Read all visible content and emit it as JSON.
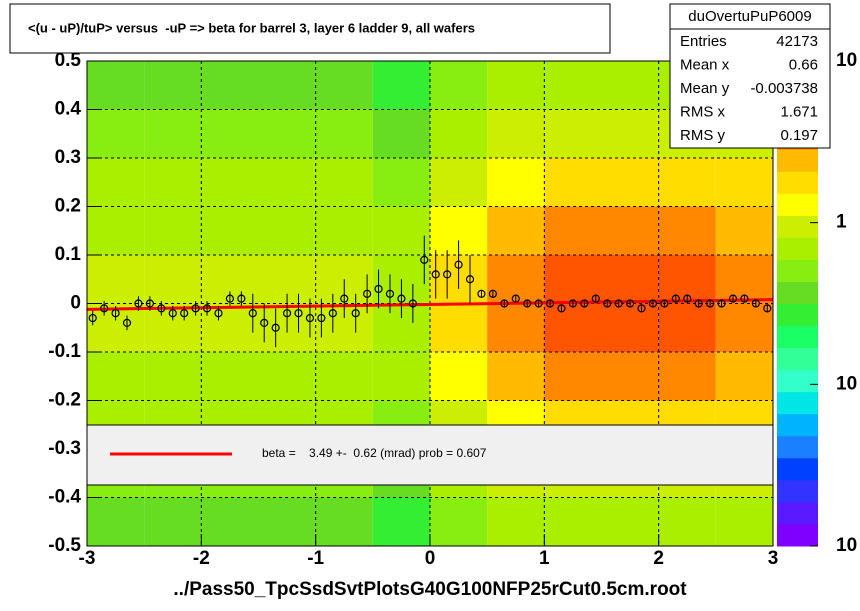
{
  "chart_data": {
    "type": "profile2d",
    "title": "<(u - uP)/tuP> versus  -uP => beta for barrel 3, layer 6 ladder 9, all wafers",
    "x_label": "../Pass50_TpcSsdSvtPlotsG40G100NFP25rCut0.5cm.root",
    "xlim": [
      -3,
      3
    ],
    "ylim": [
      -0.5,
      0.5
    ],
    "xticks": [
      -3,
      -2,
      -1,
      0,
      1,
      2,
      3
    ],
    "yticks": [
      -0.5,
      -0.4,
      -0.3,
      -0.2,
      -0.1,
      0,
      0.1,
      0.2,
      0.3,
      0.4,
      0.5
    ],
    "grid": true,
    "zlim": [
      0.01,
      10
    ],
    "zlog": true,
    "zticks": [
      {
        "value": 0.01,
        "label": "10"
      },
      {
        "value": 0.1,
        "label": "10"
      },
      1,
      {
        "value": 10,
        "label": "10"
      }
    ],
    "palette": [
      "#7f00ff",
      "#5a1aff",
      "#3333ff",
      "#0040ff",
      "#1a80ff",
      "#00b3ff",
      "#00e6e6",
      "#33ffcc",
      "#33ff99",
      "#1aff66",
      "#33ee33",
      "#66dd22",
      "#88ee11",
      "#aaee00",
      "#ccee00",
      "#ffff00",
      "#ffdd00",
      "#ffbb00",
      "#ff8800",
      "#ff5500",
      "#ff2200",
      "#ee0000"
    ],
    "xbins": [
      -3,
      -2.5,
      -2,
      -1.5,
      -1,
      -0.5,
      0,
      0.5,
      1,
      1.5,
      2,
      2.5,
      3
    ],
    "ybins": [
      -0.5,
      -0.4,
      -0.3,
      -0.2,
      -0.1,
      0,
      0.1,
      0.2,
      0.3,
      0.4,
      0.5
    ],
    "z": [
      [
        0.4,
        0.4,
        0.4,
        0.4,
        0.4,
        0.3,
        0.5,
        0.8,
        0.8,
        0.8,
        0.8,
        0.8
      ],
      [
        0.5,
        0.5,
        0.5,
        0.5,
        0.5,
        0.4,
        0.6,
        0.9,
        1,
        1,
        1,
        0.9
      ],
      [
        0.6,
        0.6,
        0.6,
        0.6,
        0.6,
        0.5,
        0.9,
        1.5,
        2,
        2,
        2,
        1.8
      ],
      [
        0.7,
        0.7,
        0.7,
        0.7,
        0.7,
        0.6,
        1.2,
        2.5,
        3,
        3,
        3,
        2.5
      ],
      [
        0.9,
        0.9,
        0.9,
        0.9,
        0.9,
        0.7,
        1.8,
        3.5,
        4,
        4,
        4,
        3.5
      ],
      [
        0.9,
        0.9,
        0.9,
        0.9,
        0.9,
        0.7,
        1.8,
        3.5,
        4,
        4,
        4,
        3.5
      ],
      [
        0.7,
        0.7,
        0.7,
        0.7,
        0.7,
        0.6,
        1.2,
        2.5,
        3,
        3,
        3,
        2.5
      ],
      [
        0.6,
        0.6,
        0.6,
        0.6,
        0.6,
        0.5,
        0.9,
        1.5,
        2,
        2,
        2,
        1.8
      ],
      [
        0.5,
        0.5,
        0.5,
        0.5,
        0.5,
        0.4,
        0.6,
        0.9,
        1,
        1,
        1,
        0.9
      ],
      [
        0.4,
        0.4,
        0.4,
        0.4,
        0.4,
        0.3,
        0.5,
        0.8,
        0.8,
        0.8,
        0.8,
        0.8
      ]
    ],
    "profile": {
      "color": "#000000",
      "x": [
        -2.95,
        -2.85,
        -2.75,
        -2.65,
        -2.55,
        -2.45,
        -2.35,
        -2.25,
        -2.15,
        -2.05,
        -1.95,
        -1.85,
        -1.75,
        -1.65,
        -1.55,
        -1.45,
        -1.35,
        -1.25,
        -1.15,
        -1.05,
        -0.95,
        -0.85,
        -0.75,
        -0.65,
        -0.55,
        -0.45,
        -0.35,
        -0.25,
        -0.15,
        -0.05,
        0.05,
        0.15,
        0.25,
        0.35,
        0.45,
        0.55,
        0.65,
        0.75,
        0.85,
        0.95,
        1.05,
        1.15,
        1.25,
        1.35,
        1.45,
        1.55,
        1.65,
        1.75,
        1.85,
        1.95,
        2.05,
        2.15,
        2.25,
        2.35,
        2.45,
        2.55,
        2.65,
        2.75,
        2.85,
        2.95
      ],
      "values": [
        -0.03,
        -0.01,
        -0.02,
        -0.04,
        0,
        0,
        -0.01,
        -0.02,
        -0.02,
        -0.01,
        -0.01,
        -0.02,
        0.01,
        0.01,
        -0.02,
        -0.04,
        -0.05,
        -0.02,
        -0.02,
        -0.03,
        -0.03,
        -0.02,
        0.01,
        -0.02,
        0.02,
        0.03,
        0.02,
        0.01,
        0,
        0.09,
        0.06,
        0.06,
        0.08,
        0.05,
        0.02,
        0.02,
        0,
        0.01,
        0,
        0,
        0,
        -0.01,
        0,
        0,
        0.01,
        0,
        0,
        0,
        -0.01,
        0,
        0,
        0.01,
        0.01,
        0,
        0,
        0,
        0.01,
        0.01,
        0,
        -0.01
      ],
      "errors": [
        0.015,
        0.015,
        0.015,
        0.015,
        0.015,
        0.015,
        0.015,
        0.015,
        0.015,
        0.015,
        0.015,
        0.015,
        0.015,
        0.015,
        0.04,
        0.04,
        0.04,
        0.04,
        0.04,
        0.04,
        0.04,
        0.04,
        0.04,
        0.04,
        0.04,
        0.04,
        0.04,
        0.04,
        0.04,
        0.05,
        0.05,
        0.05,
        0.05,
        0.05,
        0.008,
        0.008,
        0.008,
        0.008,
        0.008,
        0.008,
        0.008,
        0.008,
        0.008,
        0.008,
        0.008,
        0.008,
        0.008,
        0.008,
        0.008,
        0.008,
        0.008,
        0.008,
        0.008,
        0.008,
        0.008,
        0.008,
        0.008,
        0.008,
        0.008,
        0.008
      ]
    },
    "fit": {
      "color": "#ff0000",
      "x": [
        -3,
        3
      ],
      "values": [
        -0.012,
        0.008
      ]
    },
    "fit_label": "beta =    3.49 +-  0.62 (mrad) prob = 0.607",
    "stats": {
      "title": "duOvertuPuP6009",
      "rows": [
        [
          "Entries",
          "42173"
        ],
        [
          "Mean x",
          "0.66"
        ],
        [
          "Mean y",
          "-0.003738"
        ],
        [
          "RMS x",
          "1.671"
        ],
        [
          "RMS y",
          "0.197"
        ]
      ]
    }
  }
}
